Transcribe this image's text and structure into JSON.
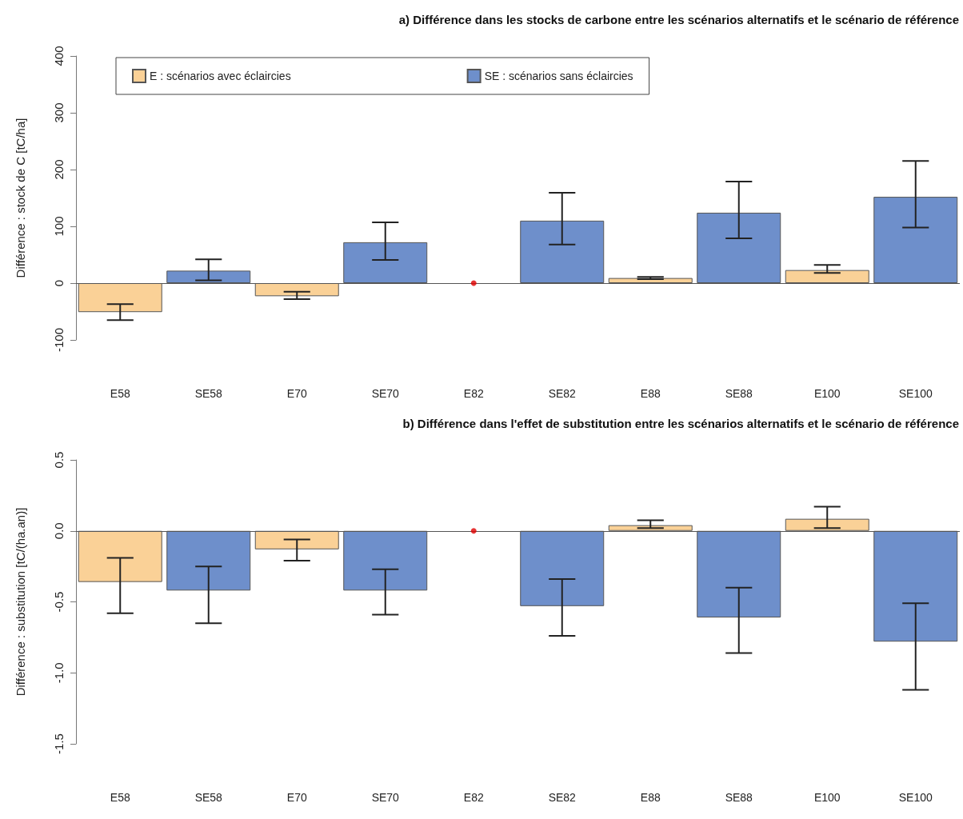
{
  "chart_data": [
    {
      "type": "bar",
      "title": "a) Différence dans les stocks de carbone entre les scénarios alternatifs et le scénario de référence",
      "ylabel": "Différence : stock de C [tC/ha]",
      "categories": [
        "E58",
        "SE58",
        "E70",
        "SE70",
        "E82",
        "SE82",
        "E88",
        "SE88",
        "E100",
        "SE100"
      ],
      "series": [
        {
          "name": "E : scénarios avec éclaircies",
          "color": "#fad197",
          "values": [
            -51,
            null,
            -23,
            null,
            null,
            null,
            9,
            null,
            23,
            null
          ],
          "errors": [
            [
              -65,
              -37
            ],
            null,
            [
              -28,
              -15
            ],
            null,
            null,
            null,
            [
              7,
              11
            ],
            null,
            [
              18,
              32
            ],
            null
          ]
        },
        {
          "name": "SE : scénarios sans éclaircies",
          "color": "#6e8fcb",
          "values": [
            null,
            22,
            null,
            72,
            null,
            110,
            null,
            124,
            null,
            152
          ],
          "errors": [
            null,
            [
              5,
              42
            ],
            null,
            [
              41,
              107
            ],
            null,
            [
              68,
              159
            ],
            null,
            [
              79,
              179
            ],
            null,
            [
              98,
              215
            ]
          ]
        },
        {
          "type": "scatter",
          "color": "#e00000",
          "x": [
            "E82"
          ],
          "values": [
            0
          ]
        }
      ],
      "ylim": [
        -100,
        400
      ],
      "yticks": [
        -100,
        0,
        100,
        200,
        300,
        400
      ],
      "grid": false,
      "legend": "top",
      "ref_lines": [
        {
          "axis": "y",
          "value": 0,
          "color": "#555555"
        }
      ]
    },
    {
      "type": "bar",
      "title": "b) Différence dans l'effet de substitution entre les scénarios alternatifs et le scénario de référence",
      "ylabel": "Différence : substitution [tC/(ha.an)]",
      "categories": [
        "E58",
        "SE58",
        "E70",
        "SE70",
        "E82",
        "SE82",
        "E88",
        "SE88",
        "E100",
        "SE100"
      ],
      "series": [
        {
          "color": "#fad197",
          "values": [
            -0.36,
            null,
            -0.13,
            null,
            null,
            null,
            0.04,
            null,
            0.085,
            null
          ],
          "errors": [
            [
              -0.58,
              -0.19
            ],
            null,
            [
              -0.21,
              -0.06
            ],
            null,
            null,
            null,
            [
              0.02,
              0.075
            ],
            null,
            [
              0.02,
              0.17
            ],
            null
          ]
        },
        {
          "color": "#6e8fcb",
          "values": [
            null,
            -0.42,
            null,
            -0.42,
            null,
            -0.53,
            null,
            -0.61,
            null,
            -0.78
          ],
          "errors": [
            null,
            [
              -0.65,
              -0.25
            ],
            null,
            [
              -0.59,
              -0.27
            ],
            null,
            [
              -0.74,
              -0.34
            ],
            null,
            [
              -0.86,
              -0.4
            ],
            null,
            [
              -1.12,
              -0.51
            ]
          ]
        },
        {
          "type": "scatter",
          "color": "#e00000",
          "x": [
            "E82"
          ],
          "values": [
            0
          ]
        }
      ],
      "ylim": [
        -1.5,
        0.5
      ],
      "yticks": [
        {
          "value": -1.5,
          "label": "-1.5"
        },
        {
          "value": -1,
          "label": "-1.0"
        },
        {
          "value": -0.5,
          "label": "-0.5"
        },
        {
          "value": 0,
          "label": "0.0"
        },
        {
          "value": 0.5,
          "label": "0.5"
        }
      ],
      "grid": false,
      "legend": false,
      "ref_lines": [
        {
          "axis": "y",
          "value": 0,
          "color": "#555555"
        }
      ]
    }
  ]
}
